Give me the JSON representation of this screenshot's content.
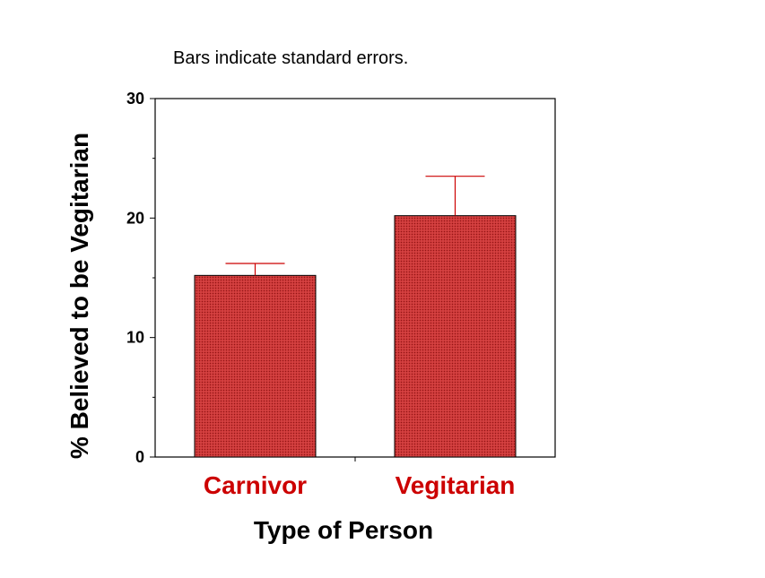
{
  "chart_data": {
    "type": "bar",
    "annotation": "Bars indicate standard errors.",
    "categories": [
      "Carnivor",
      "Vegitarian"
    ],
    "values": [
      15.2,
      20.2
    ],
    "errors": [
      1.0,
      3.3
    ],
    "xlabel": "Type of Person",
    "ylabel": "% Believed to be Vegitarian",
    "ylim": [
      0,
      30
    ],
    "yticks": [
      "0",
      "10",
      "20",
      "30"
    ],
    "grid": false,
    "colors": {
      "bar_fill": "#cc3333",
      "bar_stroke": "#000000",
      "error_bar": "#cc0000",
      "category_label": "#cc0000"
    }
  }
}
